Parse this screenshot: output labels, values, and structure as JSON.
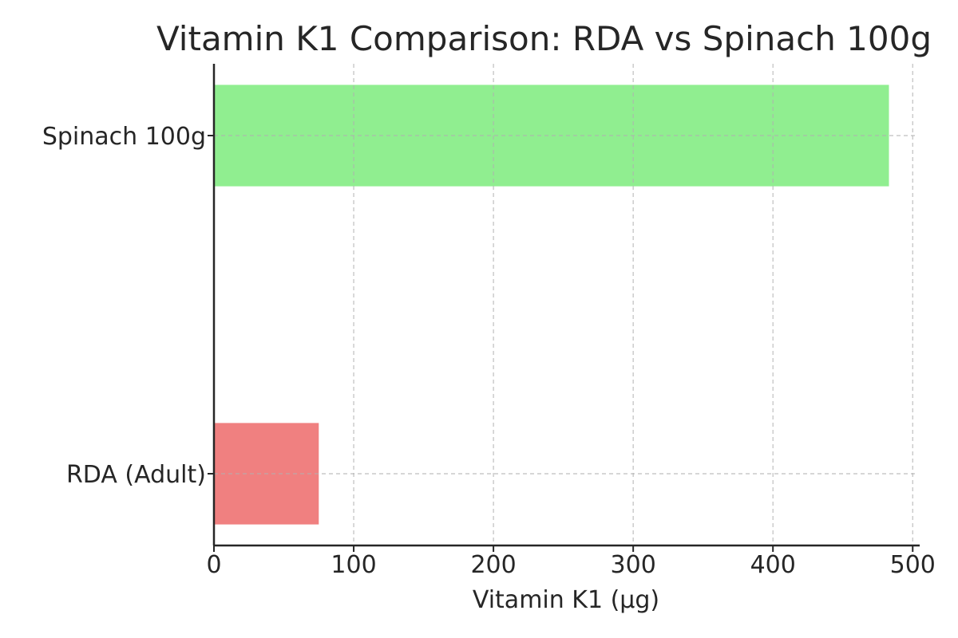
{
  "chart_data": {
    "type": "bar",
    "orientation": "horizontal",
    "title": "Vitamin K1 Comparison: RDA vs Spinach 100g",
    "xlabel": "Vitamin K1 (µg)",
    "ylabel": "",
    "xlim": [
      0,
      505
    ],
    "xticks": [
      0,
      100,
      200,
      300,
      400,
      500
    ],
    "grid": true,
    "categories": [
      "RDA (Adult)",
      "Spinach 100g"
    ],
    "values": [
      75,
      483
    ],
    "colors": [
      "#f08080",
      "#90ee90"
    ]
  }
}
